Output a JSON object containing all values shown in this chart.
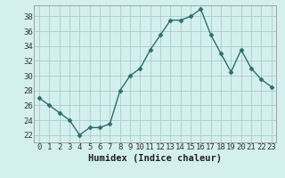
{
  "x": [
    0,
    1,
    2,
    3,
    4,
    5,
    6,
    7,
    8,
    9,
    10,
    11,
    12,
    13,
    14,
    15,
    16,
    17,
    18,
    19,
    20,
    21,
    22,
    23
  ],
  "y": [
    27,
    26,
    25,
    24,
    22,
    23,
    23,
    23.5,
    28,
    30,
    31,
    33.5,
    35.5,
    37.5,
    37.5,
    38,
    39,
    35.5,
    33,
    30.5,
    33.5,
    31,
    29.5,
    28.5
  ],
  "xlabel": "Humidex (Indice chaleur)",
  "ylabel": "",
  "xlim": [
    -0.5,
    23.5
  ],
  "ylim": [
    21,
    39.5
  ],
  "yticks": [
    22,
    24,
    26,
    28,
    30,
    32,
    34,
    36,
    38
  ],
  "xticks": [
    0,
    1,
    2,
    3,
    4,
    5,
    6,
    7,
    8,
    9,
    10,
    11,
    12,
    13,
    14,
    15,
    16,
    17,
    18,
    19,
    20,
    21,
    22,
    23
  ],
  "line_color": "#2d6e6e",
  "marker": "D",
  "marker_size": 2.5,
  "bg_color": "#d4f0ee",
  "grid_color": "#aacccc",
  "tick_fontsize": 6.5,
  "xlabel_fontsize": 7.5,
  "linewidth": 1.0
}
